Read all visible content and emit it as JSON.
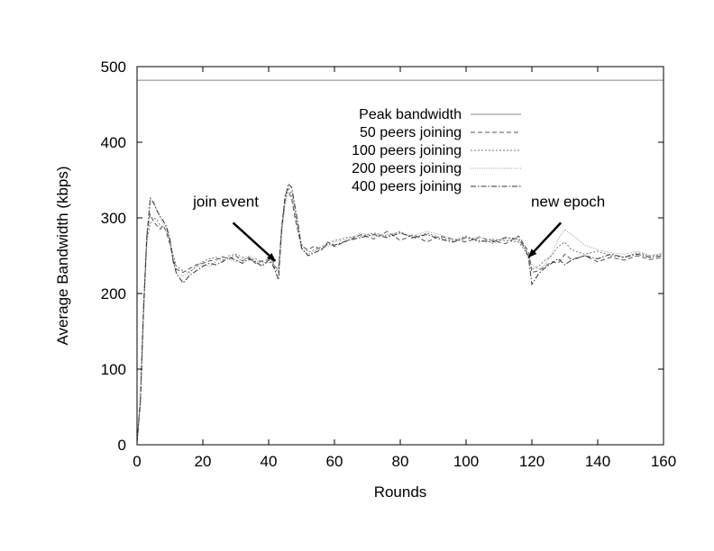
{
  "chart_data": {
    "type": "line",
    "title": "",
    "xlabel": "Rounds",
    "ylabel": "Average Bandwidth (kbps)",
    "xlim": [
      0,
      160
    ],
    "ylim": [
      0,
      500
    ],
    "xticks": [
      "0",
      "20",
      "40",
      "60",
      "80",
      "100",
      "120",
      "140",
      "160"
    ],
    "yticks": [
      "0",
      "100",
      "200",
      "300",
      "400",
      "500"
    ],
    "grid": false,
    "legend": "top-center",
    "series": [
      {
        "name": "Peak bandwidth",
        "style": "solid",
        "color": "#888888",
        "x": [
          0,
          160
        ],
        "y": [
          482,
          482
        ]
      },
      {
        "name": "50 peers joining",
        "style": "dashed",
        "color": "#555555",
        "x": [
          0,
          1,
          2,
          3,
          4,
          5,
          6,
          7,
          8,
          9,
          10,
          11,
          12,
          14,
          16,
          18,
          20,
          22,
          24,
          26,
          28,
          30,
          32,
          34,
          36,
          38,
          40,
          41,
          42,
          43,
          44,
          45,
          46,
          47,
          48,
          49,
          50,
          52,
          54,
          56,
          58,
          60,
          64,
          68,
          72,
          76,
          80,
          84,
          88,
          92,
          96,
          100,
          104,
          108,
          112,
          116,
          118,
          119,
          120,
          122,
          124,
          126,
          128,
          130,
          132,
          136,
          140,
          144,
          148,
          152,
          156,
          160
        ],
        "y": [
          5,
          60,
          180,
          280,
          305,
          295,
          290,
          285,
          290,
          280,
          265,
          245,
          232,
          228,
          233,
          238,
          240,
          243,
          245,
          248,
          246,
          250,
          243,
          248,
          240,
          243,
          245,
          247,
          235,
          232,
          290,
          330,
          335,
          325,
          300,
          280,
          262,
          258,
          263,
          257,
          268,
          262,
          270,
          278,
          272,
          282,
          270,
          278,
          268,
          276,
          272,
          268,
          274,
          270,
          266,
          276,
          262,
          255,
          228,
          230,
          236,
          242,
          240,
          252,
          245,
          250,
          242,
          248,
          244,
          250,
          245,
          248
        ]
      },
      {
        "name": "100 peers joining",
        "style": "dotted",
        "color": "#777777",
        "x": [
          0,
          1,
          2,
          3,
          4,
          5,
          6,
          7,
          8,
          9,
          10,
          11,
          12,
          14,
          16,
          18,
          20,
          22,
          24,
          26,
          28,
          30,
          32,
          34,
          36,
          38,
          40,
          41,
          42,
          43,
          44,
          45,
          46,
          47,
          48,
          49,
          50,
          52,
          54,
          56,
          58,
          60,
          64,
          68,
          72,
          76,
          80,
          84,
          88,
          92,
          96,
          100,
          104,
          108,
          112,
          116,
          118,
          119,
          120,
          122,
          124,
          126,
          128,
          130,
          132,
          136,
          140,
          144,
          148,
          152,
          156,
          160
        ],
        "y": [
          3,
          55,
          175,
          270,
          292,
          300,
          298,
          290,
          288,
          284,
          270,
          250,
          236,
          230,
          228,
          236,
          242,
          246,
          248,
          244,
          250,
          252,
          248,
          244,
          246,
          242,
          240,
          244,
          232,
          228,
          285,
          322,
          340,
          330,
          305,
          285,
          265,
          255,
          258,
          262,
          266,
          270,
          274,
          276,
          280,
          276,
          282,
          272,
          280,
          274,
          270,
          276,
          268,
          272,
          270,
          268,
          256,
          248,
          232,
          236,
          244,
          250,
          262,
          268,
          258,
          252,
          256,
          250,
          248,
          254,
          250,
          252
        ]
      },
      {
        "name": "200 peers joining",
        "style": "fine-dotted",
        "color": "#999999",
        "x": [
          0,
          1,
          2,
          3,
          4,
          5,
          6,
          7,
          8,
          9,
          10,
          11,
          12,
          14,
          16,
          18,
          20,
          22,
          24,
          26,
          28,
          30,
          32,
          34,
          36,
          38,
          40,
          41,
          42,
          43,
          44,
          45,
          46,
          47,
          48,
          49,
          50,
          52,
          54,
          56,
          58,
          60,
          64,
          68,
          72,
          76,
          80,
          84,
          88,
          92,
          96,
          100,
          104,
          108,
          112,
          116,
          118,
          119,
          120,
          122,
          124,
          126,
          128,
          130,
          132,
          136,
          140,
          144,
          148,
          152,
          156,
          160
        ],
        "y": [
          4,
          50,
          170,
          265,
          318,
          322,
          312,
          300,
          292,
          286,
          268,
          240,
          228,
          222,
          230,
          234,
          238,
          236,
          242,
          250,
          245,
          242,
          246,
          250,
          244,
          238,
          246,
          242,
          236,
          230,
          280,
          318,
          330,
          335,
          310,
          282,
          258,
          252,
          256,
          260,
          262,
          268,
          272,
          280,
          275,
          278,
          280,
          276,
          282,
          278,
          272,
          270,
          276,
          266,
          272,
          270,
          258,
          250,
          238,
          232,
          238,
          252,
          272,
          285,
          278,
          264,
          258,
          254,
          252,
          256,
          250,
          254
        ]
      },
      {
        "name": "400 peers joining",
        "style": "dash-dot",
        "color": "#333333",
        "x": [
          0,
          1,
          2,
          3,
          4,
          5,
          6,
          7,
          8,
          9,
          10,
          11,
          12,
          14,
          16,
          18,
          20,
          22,
          24,
          26,
          28,
          30,
          32,
          34,
          36,
          38,
          40,
          41,
          42,
          43,
          44,
          45,
          46,
          47,
          48,
          49,
          50,
          52,
          54,
          56,
          58,
          60,
          64,
          68,
          72,
          76,
          80,
          84,
          88,
          92,
          96,
          100,
          104,
          108,
          112,
          116,
          118,
          119,
          120,
          122,
          124,
          126,
          128,
          130,
          132,
          136,
          140,
          144,
          148,
          152,
          156,
          160
        ],
        "y": [
          2,
          58,
          185,
          275,
          326,
          320,
          310,
          302,
          296,
          288,
          272,
          242,
          226,
          214,
          224,
          230,
          236,
          240,
          238,
          242,
          248,
          244,
          240,
          246,
          242,
          236,
          244,
          240,
          230,
          218,
          288,
          326,
          345,
          340,
          315,
          290,
          260,
          250,
          254,
          258,
          266,
          264,
          270,
          274,
          278,
          274,
          280,
          274,
          278,
          272,
          268,
          274,
          270,
          268,
          274,
          272,
          260,
          246,
          212,
          226,
          234,
          240,
          246,
          238,
          244,
          250,
          246,
          252,
          248,
          252,
          248,
          250
        ]
      }
    ],
    "annotations": [
      {
        "text": "join event",
        "points_to": [
          42,
          243
        ],
        "label_at": [
          27,
          315
        ]
      },
      {
        "text": "new epoch",
        "points_to": [
          119,
          248
        ],
        "label_at": [
          131,
          315
        ]
      }
    ]
  }
}
